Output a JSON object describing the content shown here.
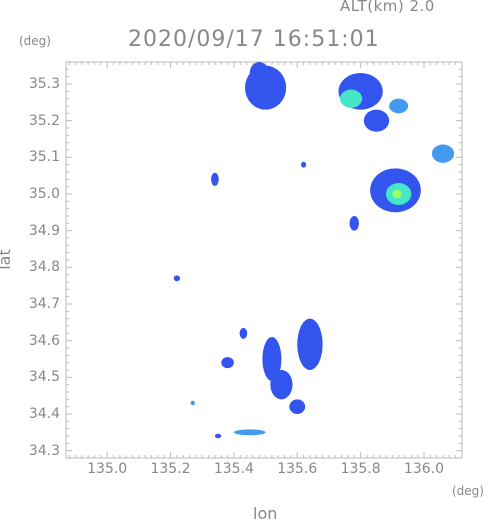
{
  "header": {
    "altitude": "ALT(km) 2.0",
    "timestamp": "2020/09/17 16:51:01",
    "deg_left": "(deg)",
    "deg_right": "(deg)"
  },
  "axes": {
    "xlabel": "lon",
    "ylabel": "lat",
    "xticks": [
      {
        "label": "135.0",
        "value": 135.0
      },
      {
        "label": "135.2",
        "value": 135.2
      },
      {
        "label": "135.4",
        "value": 135.4
      },
      {
        "label": "135.6",
        "value": 135.6
      },
      {
        "label": "135.8",
        "value": 135.8
      },
      {
        "label": "136.0",
        "value": 136.0
      }
    ],
    "yticks": [
      {
        "label": "35.3",
        "value": 35.3
      },
      {
        "label": "35.2",
        "value": 35.2
      },
      {
        "label": "35.1",
        "value": 35.1
      },
      {
        "label": "35.0",
        "value": 35.0
      },
      {
        "label": "34.9",
        "value": 34.9
      },
      {
        "label": "34.8",
        "value": 34.8
      },
      {
        "label": "34.7",
        "value": 34.7
      },
      {
        "label": "34.6",
        "value": 34.6
      },
      {
        "label": "34.5",
        "value": 34.5
      },
      {
        "label": "34.4",
        "value": 34.4
      },
      {
        "label": "34.3",
        "value": 34.3
      }
    ],
    "xlim": [
      134.87,
      136.12
    ],
    "ylim": [
      34.28,
      35.36
    ]
  },
  "colors": {
    "frame": "#bbbbbb",
    "text": "#888888",
    "echo_weak": "#3355ee",
    "echo_mid": "#4499f0",
    "echo_strong": "#44e8c8",
    "echo_core": "#99ff66"
  },
  "echo_cells": [
    {
      "lon": 135.5,
      "lat": 35.29,
      "rx": 0.065,
      "ry": 0.06,
      "intensity": "weak"
    },
    {
      "lon": 135.48,
      "lat": 35.33,
      "rx": 0.03,
      "ry": 0.03,
      "intensity": "weak"
    },
    {
      "lon": 135.8,
      "lat": 35.28,
      "rx": 0.07,
      "ry": 0.05,
      "intensity": "weak"
    },
    {
      "lon": 135.77,
      "lat": 35.26,
      "rx": 0.035,
      "ry": 0.025,
      "intensity": "strong"
    },
    {
      "lon": 135.92,
      "lat": 35.24,
      "rx": 0.03,
      "ry": 0.02,
      "intensity": "mid"
    },
    {
      "lon": 135.85,
      "lat": 35.2,
      "rx": 0.04,
      "ry": 0.03,
      "intensity": "weak"
    },
    {
      "lon": 136.06,
      "lat": 35.11,
      "rx": 0.035,
      "ry": 0.025,
      "intensity": "mid"
    },
    {
      "lon": 135.91,
      "lat": 35.01,
      "rx": 0.08,
      "ry": 0.06,
      "intensity": "weak"
    },
    {
      "lon": 135.92,
      "lat": 35.0,
      "rx": 0.04,
      "ry": 0.03,
      "intensity": "strong"
    },
    {
      "lon": 135.915,
      "lat": 35.0,
      "rx": 0.015,
      "ry": 0.012,
      "intensity": "core"
    },
    {
      "lon": 135.34,
      "lat": 35.04,
      "rx": 0.012,
      "ry": 0.018,
      "intensity": "weak"
    },
    {
      "lon": 135.62,
      "lat": 35.08,
      "rx": 0.008,
      "ry": 0.008,
      "intensity": "weak"
    },
    {
      "lon": 135.78,
      "lat": 34.92,
      "rx": 0.015,
      "ry": 0.02,
      "intensity": "weak"
    },
    {
      "lon": 135.64,
      "lat": 34.59,
      "rx": 0.04,
      "ry": 0.07,
      "intensity": "weak"
    },
    {
      "lon": 135.52,
      "lat": 34.55,
      "rx": 0.03,
      "ry": 0.06,
      "intensity": "weak"
    },
    {
      "lon": 135.55,
      "lat": 34.48,
      "rx": 0.035,
      "ry": 0.04,
      "intensity": "weak"
    },
    {
      "lon": 135.6,
      "lat": 34.42,
      "rx": 0.025,
      "ry": 0.02,
      "intensity": "weak"
    },
    {
      "lon": 135.43,
      "lat": 34.62,
      "rx": 0.012,
      "ry": 0.015,
      "intensity": "weak"
    },
    {
      "lon": 135.38,
      "lat": 34.54,
      "rx": 0.02,
      "ry": 0.015,
      "intensity": "weak"
    },
    {
      "lon": 135.27,
      "lat": 34.43,
      "rx": 0.007,
      "ry": 0.006,
      "intensity": "mid"
    },
    {
      "lon": 135.45,
      "lat": 34.35,
      "rx": 0.05,
      "ry": 0.008,
      "intensity": "mid"
    },
    {
      "lon": 135.35,
      "lat": 34.34,
      "rx": 0.01,
      "ry": 0.006,
      "intensity": "weak"
    },
    {
      "lon": 135.22,
      "lat": 34.77,
      "rx": 0.01,
      "ry": 0.008,
      "intensity": "weak"
    }
  ]
}
